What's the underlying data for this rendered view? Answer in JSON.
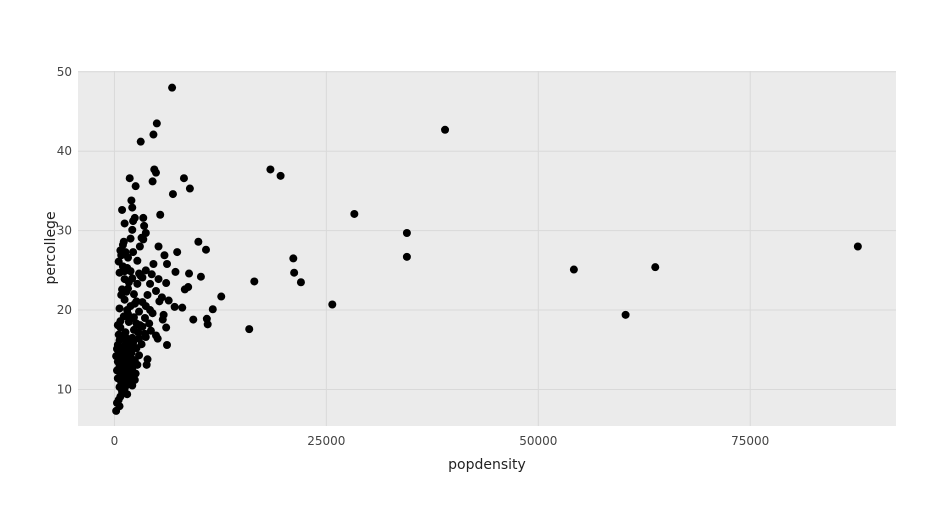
{
  "chart_data": {
    "type": "scatter",
    "title": "",
    "xlabel": "popdensity",
    "ylabel": "percollege",
    "xlim": [
      -4300,
      92200
    ],
    "ylim": [
      5.4,
      50.1
    ],
    "x_ticks": [
      0,
      25000,
      50000,
      75000
    ],
    "x_tick_labels": [
      "0",
      "25000",
      "50000",
      "75000"
    ],
    "y_ticks": [
      10,
      20,
      30,
      40,
      50
    ],
    "y_tick_labels": [
      "10",
      "20",
      "30",
      "40",
      "50"
    ],
    "grid": true,
    "legend": "none",
    "colors": {
      "panel": "#ebebeb",
      "grid": "#d9d9d9",
      "point": "#000000",
      "background": "#ffffff"
    },
    "points": [
      [
        6800,
        48.0
      ],
      [
        5000,
        43.5
      ],
      [
        4600,
        42.1
      ],
      [
        3100,
        41.2
      ],
      [
        39000,
        42.7
      ],
      [
        18400,
        37.7
      ],
      [
        19600,
        36.9
      ],
      [
        4700,
        37.7
      ],
      [
        4900,
        37.3
      ],
      [
        1800,
        36.6
      ],
      [
        4500,
        36.2
      ],
      [
        8200,
        36.6
      ],
      [
        8900,
        35.3
      ],
      [
        2500,
        35.6
      ],
      [
        6900,
        34.6
      ],
      [
        2000,
        33.8
      ],
      [
        2100,
        32.9
      ],
      [
        900,
        32.6
      ],
      [
        5400,
        32.0
      ],
      [
        28300,
        32.1
      ],
      [
        2400,
        31.6
      ],
      [
        3400,
        31.6
      ],
      [
        2200,
        31.2
      ],
      [
        1200,
        30.9
      ],
      [
        3500,
        30.6
      ],
      [
        34500,
        29.7
      ],
      [
        2100,
        30.1
      ],
      [
        3700,
        29.7
      ],
      [
        3200,
        29.1
      ],
      [
        3400,
        28.9
      ],
      [
        1900,
        29.0
      ],
      [
        1100,
        28.6
      ],
      [
        9900,
        28.6
      ],
      [
        1000,
        28.2
      ],
      [
        3000,
        28.0
      ],
      [
        5200,
        28.0
      ],
      [
        700,
        27.5
      ],
      [
        1300,
        27.3
      ],
      [
        10800,
        27.6
      ],
      [
        2200,
        27.3
      ],
      [
        7400,
        27.3
      ],
      [
        800,
        26.9
      ],
      [
        1600,
        26.6
      ],
      [
        5900,
        26.9
      ],
      [
        34500,
        26.7
      ],
      [
        21100,
        26.5
      ],
      [
        500,
        26.1
      ],
      [
        2700,
        26.2
      ],
      [
        4600,
        25.8
      ],
      [
        6200,
        25.8
      ],
      [
        1000,
        25.5
      ],
      [
        1500,
        25.3
      ],
      [
        3700,
        25.0
      ],
      [
        54200,
        25.1
      ],
      [
        63800,
        25.4
      ],
      [
        600,
        24.7
      ],
      [
        1200,
        24.9
      ],
      [
        1900,
        24.9
      ],
      [
        2900,
        24.6
      ],
      [
        4400,
        24.5
      ],
      [
        7200,
        24.8
      ],
      [
        8800,
        24.6
      ],
      [
        21200,
        24.7
      ],
      [
        10200,
        24.2
      ],
      [
        2100,
        24.0
      ],
      [
        3300,
        24.1
      ],
      [
        5200,
        23.9
      ],
      [
        16500,
        23.6
      ],
      [
        22000,
        23.5
      ],
      [
        1700,
        23.5
      ],
      [
        2700,
        23.3
      ],
      [
        4200,
        23.3
      ],
      [
        6100,
        23.4
      ],
      [
        8700,
        22.9
      ],
      [
        8300,
        22.6
      ],
      [
        900,
        22.6
      ],
      [
        1600,
        22.7
      ],
      [
        4900,
        22.4
      ],
      [
        2300,
        22.0
      ],
      [
        3900,
        21.9
      ],
      [
        5600,
        21.6
      ],
      [
        12600,
        21.7
      ],
      [
        1200,
        21.3
      ],
      [
        2600,
        21.1
      ],
      [
        3300,
        21.0
      ],
      [
        5300,
        21.1
      ],
      [
        6400,
        21.2
      ],
      [
        25700,
        20.7
      ],
      [
        1900,
        20.5
      ],
      [
        3700,
        20.5
      ],
      [
        7100,
        20.4
      ],
      [
        8000,
        20.3
      ],
      [
        11600,
        20.1
      ],
      [
        600,
        20.2
      ],
      [
        1500,
        20.0
      ],
      [
        2900,
        19.8
      ],
      [
        4500,
        19.6
      ],
      [
        5800,
        19.4
      ],
      [
        60300,
        19.4
      ],
      [
        1100,
        19.2
      ],
      [
        2300,
        19.1
      ],
      [
        3600,
        19.0
      ],
      [
        5700,
        18.8
      ],
      [
        9300,
        18.8
      ],
      [
        10900,
        18.9
      ],
      [
        700,
        18.6
      ],
      [
        1700,
        18.5
      ],
      [
        2600,
        18.3
      ],
      [
        4100,
        18.3
      ],
      [
        11000,
        18.2
      ],
      [
        3300,
        17.9
      ],
      [
        6100,
        17.8
      ],
      [
        15900,
        17.6
      ],
      [
        2300,
        17.5
      ],
      [
        4300,
        17.4
      ],
      [
        1300,
        17.2
      ],
      [
        3600,
        17.0
      ],
      [
        4900,
        16.8
      ],
      [
        500,
        16.9
      ],
      [
        900,
        16.7
      ],
      [
        2100,
        16.5
      ],
      [
        2900,
        16.4
      ],
      [
        3700,
        16.6
      ],
      [
        5100,
        16.4
      ],
      [
        600,
        16.2
      ],
      [
        1400,
        16.0
      ],
      [
        2200,
        15.9
      ],
      [
        3200,
        15.7
      ],
      [
        6200,
        15.6
      ],
      [
        400,
        15.6
      ],
      [
        1100,
        15.4
      ],
      [
        1800,
        15.3
      ],
      [
        2600,
        15.2
      ],
      [
        300,
        15.1
      ],
      [
        900,
        14.9
      ],
      [
        1500,
        14.7
      ],
      [
        2000,
        14.6
      ],
      [
        500,
        14.5
      ],
      [
        1200,
        14.3
      ],
      [
        1900,
        14.1
      ],
      [
        200,
        14.2
      ],
      [
        800,
        13.9
      ],
      [
        1600,
        13.8
      ],
      [
        2400,
        13.7
      ],
      [
        3900,
        13.8
      ],
      [
        400,
        13.5
      ],
      [
        1000,
        13.3
      ],
      [
        1800,
        13.2
      ],
      [
        2700,
        13.1
      ],
      [
        3800,
        13.1
      ],
      [
        600,
        12.9
      ],
      [
        1300,
        12.7
      ],
      [
        2100,
        12.6
      ],
      [
        300,
        12.4
      ],
      [
        1000,
        12.2
      ],
      [
        1700,
        12.1
      ],
      [
        2500,
        12.0
      ],
      [
        700,
        11.8
      ],
      [
        1400,
        11.7
      ],
      [
        2000,
        11.5
      ],
      [
        400,
        11.4
      ],
      [
        1100,
        11.2
      ],
      [
        1800,
        11.0
      ],
      [
        800,
        10.9
      ],
      [
        1500,
        10.6
      ],
      [
        2100,
        10.5
      ],
      [
        600,
        10.3
      ],
      [
        1200,
        10.1
      ],
      [
        900,
        9.7
      ],
      [
        1500,
        9.4
      ],
      [
        700,
        9.1
      ],
      [
        500,
        8.7
      ],
      [
        300,
        8.3
      ],
      [
        600,
        7.9
      ],
      [
        200,
        7.3
      ],
      [
        87700,
        28.0
      ],
      [
        1200,
        23.9
      ],
      [
        800,
        21.9
      ],
      [
        1600,
        19.5
      ],
      [
        2800,
        17.2
      ],
      [
        700,
        17.8
      ],
      [
        1300,
        16.6
      ],
      [
        2000,
        14.9
      ],
      [
        2900,
        14.3
      ],
      [
        1000,
        13.0
      ],
      [
        400,
        18.1
      ],
      [
        1900,
        18.9
      ],
      [
        2400,
        20.8
      ],
      [
        1400,
        22.3
      ],
      [
        3100,
        24.3
      ],
      [
        4200,
        20.0
      ],
      [
        3000,
        18.1
      ],
      [
        700,
        15.0
      ],
      [
        1700,
        13.4
      ],
      [
        2400,
        11.2
      ]
    ]
  }
}
